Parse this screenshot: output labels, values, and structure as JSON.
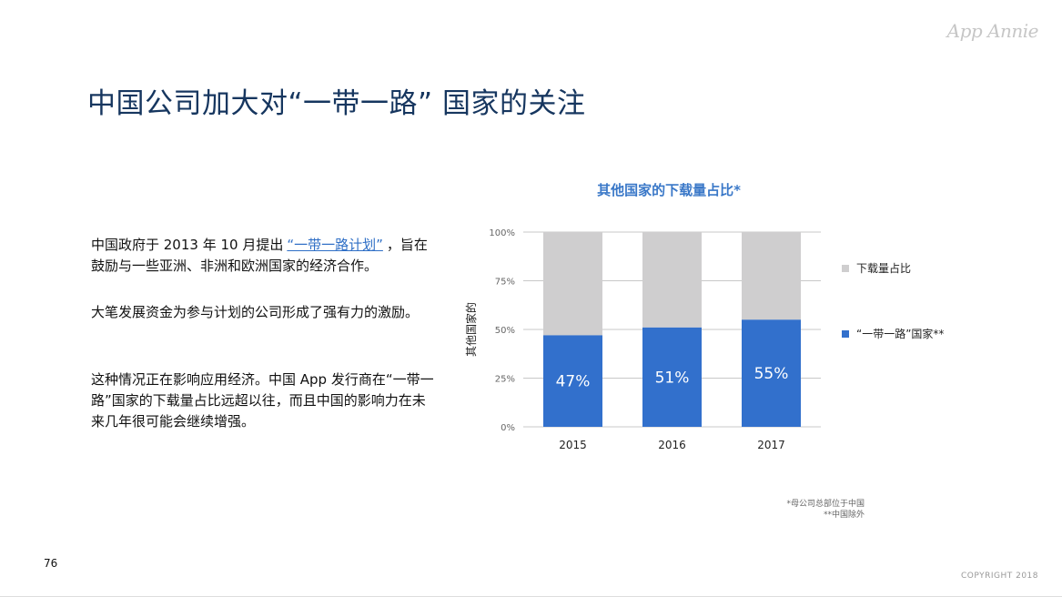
{
  "logo": "App Annie",
  "title": "中国公司加大对“一带一路” 国家的关注",
  "paragraphs": {
    "p1_before": "中国政府于 2013 年 10 月提出",
    "p1_link": "“一带一路计划”",
    "p1_after": "，旨在鼓励与一些亚洲、非洲和欧洲国家的经济合作。",
    "p2": "大笔发展资金为参与计划的公司形成了强有力的激励。",
    "p3": "这种情况正在影响应用经济。中国 App 发行商在“一带一路”国家的下载量占比远超以往，而且中国的影响力在未来几年很可能会继续增强。"
  },
  "chart_data": {
    "type": "bar",
    "stacked": true,
    "title": "其他国家的下载量占比*",
    "ylabel": "其他国家的",
    "categories": [
      "2015",
      "2016",
      "2017"
    ],
    "yticks": [
      "0%",
      "25%",
      "50%",
      "75%",
      "100%"
    ],
    "ylim": [
      0,
      100
    ],
    "series": [
      {
        "name": "“一带一路”国家**",
        "values": [
          47,
          51,
          55
        ],
        "color": "#3270cc",
        "labels": [
          "47%",
          "51%",
          "55%"
        ]
      },
      {
        "name": "下载量占比",
        "values": [
          53,
          49,
          45
        ],
        "color": "#cfcecf"
      }
    ],
    "legend": "right",
    "grid": true
  },
  "footnotes": {
    "f1": "*母公司总部位于中国",
    "f2": "**中国除外"
  },
  "page_number": "76",
  "copyright": "COPYRIGHT 2018"
}
